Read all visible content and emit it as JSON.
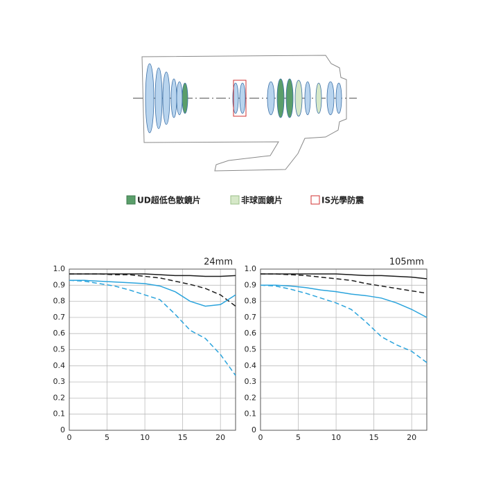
{
  "diagram": {
    "legend": [
      "UD超低色散鏡片",
      "非球面鏡片",
      "IS光學防震"
    ]
  },
  "chart_data": [
    {
      "type": "line",
      "title": "24mm",
      "x": [
        0,
        2,
        4,
        6,
        8,
        10,
        12,
        14,
        16,
        18,
        20,
        22
      ],
      "series": [
        {
          "color": "#1a1a1a",
          "dash": "solid",
          "values": [
            0.97,
            0.97,
            0.97,
            0.97,
            0.97,
            0.97,
            0.965,
            0.96,
            0.96,
            0.955,
            0.955,
            0.96
          ]
        },
        {
          "color": "#1a1a1a",
          "dash": "dashed",
          "values": [
            0.97,
            0.97,
            0.97,
            0.965,
            0.965,
            0.955,
            0.945,
            0.925,
            0.905,
            0.88,
            0.84,
            0.77
          ]
        },
        {
          "color": "#29a3dc",
          "dash": "solid",
          "values": [
            0.93,
            0.93,
            0.925,
            0.92,
            0.915,
            0.91,
            0.895,
            0.86,
            0.8,
            0.77,
            0.78,
            0.84
          ]
        },
        {
          "color": "#29a3dc",
          "dash": "dashed",
          "values": [
            0.93,
            0.925,
            0.91,
            0.895,
            0.87,
            0.84,
            0.81,
            0.72,
            0.62,
            0.57,
            0.47,
            0.34
          ]
        }
      ],
      "xlim": [
        0,
        22
      ],
      "ylim": [
        0,
        1
      ],
      "xticks": [
        0,
        5,
        10,
        15,
        20
      ],
      "yticks": [
        0,
        0.1,
        0.2,
        0.3,
        0.4,
        0.5,
        0.6,
        0.7,
        0.8,
        0.9,
        {
          "value": 1,
          "label": "1.0"
        }
      ],
      "grid": true
    },
    {
      "type": "line",
      "title": "105mm",
      "x": [
        0,
        2,
        4,
        6,
        8,
        10,
        12,
        14,
        16,
        18,
        20,
        22
      ],
      "series": [
        {
          "color": "#1a1a1a",
          "dash": "solid",
          "values": [
            0.97,
            0.97,
            0.97,
            0.97,
            0.97,
            0.97,
            0.965,
            0.96,
            0.96,
            0.955,
            0.95,
            0.94
          ]
        },
        {
          "color": "#1a1a1a",
          "dash": "dashed",
          "values": [
            0.97,
            0.97,
            0.965,
            0.96,
            0.95,
            0.94,
            0.93,
            0.91,
            0.895,
            0.88,
            0.865,
            0.85
          ]
        },
        {
          "color": "#29a3dc",
          "dash": "solid",
          "values": [
            0.9,
            0.9,
            0.895,
            0.885,
            0.87,
            0.86,
            0.845,
            0.835,
            0.82,
            0.79,
            0.75,
            0.7
          ]
        },
        {
          "color": "#29a3dc",
          "dash": "dashed",
          "values": [
            0.9,
            0.895,
            0.875,
            0.85,
            0.82,
            0.79,
            0.75,
            0.67,
            0.58,
            0.53,
            0.49,
            0.42
          ]
        }
      ],
      "xlim": [
        0,
        22
      ],
      "ylim": [
        0,
        1
      ],
      "xticks": [
        0,
        5,
        10,
        15,
        20
      ],
      "yticks": [
        0,
        0.1,
        0.2,
        0.3,
        0.4,
        0.5,
        0.6,
        0.7,
        0.8,
        0.9,
        {
          "value": 1,
          "label": "1.0"
        }
      ],
      "grid": true
    }
  ]
}
